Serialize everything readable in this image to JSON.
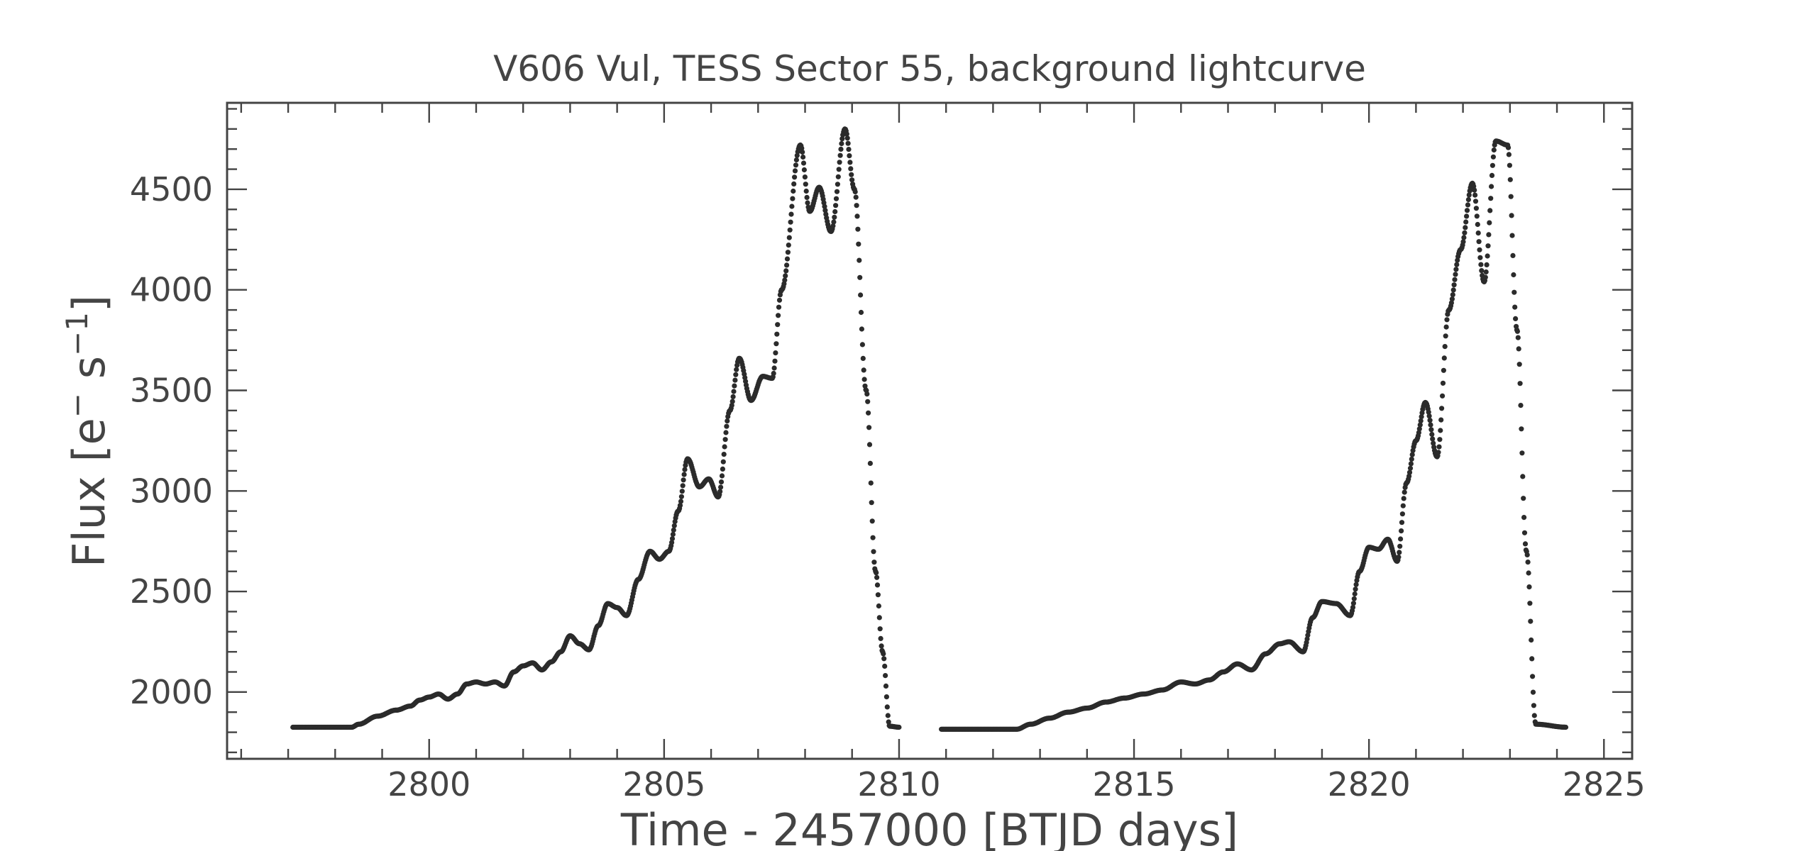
{
  "chart_data": {
    "type": "scatter",
    "title": "V606 Vul, TESS Sector 55, background lightcurve",
    "xlabel": "Time - 2457000 [BTJD days]",
    "ylabel_text": "Flux [e",
    "ylabel_sup1": "−",
    "ylabel_mid": " s",
    "ylabel_sup2": "−1",
    "ylabel_end": "]",
    "xlim": [
      2795.7,
      2825.6
    ],
    "ylim": [
      1668,
      4930
    ],
    "x_ticks": [
      2800,
      2805,
      2810,
      2815,
      2820,
      2825
    ],
    "x_tick_labels": [
      "2800",
      "2805",
      "2810",
      "2815",
      "2820",
      "2825"
    ],
    "y_ticks": [
      2000,
      2500,
      3000,
      3500,
      4000,
      4500
    ],
    "y_tick_labels": [
      "2000",
      "2500",
      "3000",
      "3500",
      "4000",
      "4500"
    ],
    "x_minor_step": 1,
    "y_minor_step": 100,
    "grid": false,
    "marker_color": "#2b2b2b",
    "series": [
      {
        "name": "",
        "cadence": 0.0139,
        "segments": [
          {
            "x": [
              2797.1,
              2798.35,
              2798.5,
              2798.9,
              2799.3,
              2799.6,
              2799.8,
              2800.0,
              2800.2,
              2800.4,
              2800.6,
              2800.8,
              2801.0,
              2801.2,
              2801.4,
              2801.6,
              2801.8,
              2802.0,
              2802.2,
              2802.4,
              2802.6,
              2802.8,
              2803.0,
              2803.2,
              2803.4,
              2803.6,
              2803.8,
              2804.0,
              2804.2,
              2804.45,
              2804.7,
              2804.9,
              2805.1,
              2805.3,
              2805.5,
              2805.75,
              2805.95,
              2806.15,
              2806.4,
              2806.6,
              2806.85,
              2807.1,
              2807.3,
              2807.5,
              2807.9,
              2808.1,
              2808.3,
              2808.55,
              2808.85,
              2809.05,
              2809.3,
              2809.5,
              2809.65,
              2809.8,
              2810.0
            ],
            "y": [
              1825,
              1825,
              1840,
              1880,
              1910,
              1930,
              1960,
              1975,
              1990,
              1965,
              1990,
              2040,
              2050,
              2040,
              2050,
              2030,
              2100,
              2130,
              2145,
              2110,
              2150,
              2200,
              2280,
              2240,
              2210,
              2330,
              2440,
              2420,
              2380,
              2560,
              2700,
              2660,
              2700,
              2900,
              3160,
              3020,
              3060,
              2970,
              3400,
              3660,
              3450,
              3570,
              3560,
              4000,
              4720,
              4390,
              4510,
              4290,
              4800,
              4500,
              3500,
              2600,
              2200,
              1830,
              1825
            ]
          },
          {
            "x": [
              2810.9,
              2812.5,
              2812.8,
              2813.2,
              2813.6,
              2814.0,
              2814.4,
              2814.8,
              2815.2,
              2815.6,
              2816.0,
              2816.3,
              2816.6,
              2816.9,
              2817.2,
              2817.5,
              2817.8,
              2818.1,
              2818.3,
              2818.6,
              2818.8,
              2819.0,
              2819.3,
              2819.6,
              2819.8,
              2820.0,
              2820.2,
              2820.4,
              2820.6,
              2820.8,
              2821.0,
              2821.2,
              2821.45,
              2821.7,
              2821.95,
              2822.2,
              2822.45,
              2822.7,
              2822.95,
              2823.15,
              2823.35,
              2823.55,
              2824.2
            ],
            "y": [
              1815,
              1815,
              1840,
              1870,
              1900,
              1920,
              1950,
              1970,
              1990,
              2010,
              2050,
              2040,
              2060,
              2100,
              2140,
              2110,
              2190,
              2240,
              2250,
              2200,
              2370,
              2450,
              2440,
              2380,
              2600,
              2720,
              2710,
              2760,
              2650,
              3040,
              3250,
              3440,
              3170,
              3900,
              4200,
              4530,
              4040,
              4740,
              4720,
              3800,
              2700,
              1840,
              1825
            ]
          }
        ]
      }
    ]
  }
}
